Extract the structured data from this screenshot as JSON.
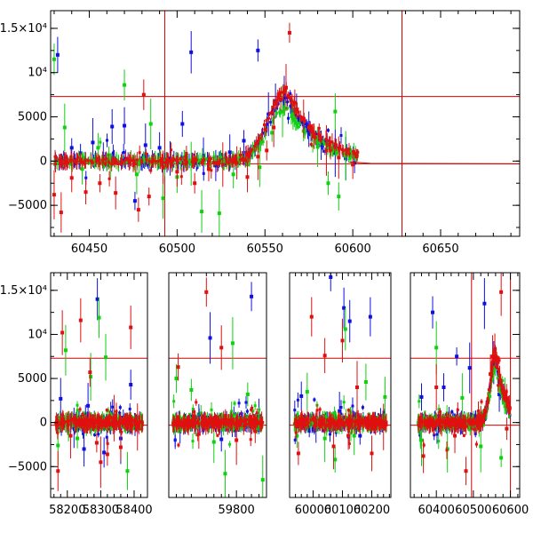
{
  "chart_data": [
    {
      "type": "scatter",
      "title": "",
      "xlabel": "",
      "ylabel": "",
      "xlim": [
        60428,
        60695
      ],
      "ylim": [
        -8500,
        17000
      ],
      "x_ticks": [
        60450,
        60500,
        60550,
        60600,
        60650
      ],
      "y_ticks": [
        -5000,
        0,
        5000,
        10000,
        15000
      ],
      "y_tick_labels": [
        "−5000",
        "0",
        "5000",
        "10⁴",
        "1.5×10⁴"
      ],
      "hlines": [
        7300,
        -300
      ],
      "vlines": [
        60493,
        60628
      ],
      "series": [
        {
          "color": "#1010e0",
          "points": [
            [
              60432,
              12000
            ],
            [
              60440,
              1500
            ],
            [
              60445,
              900
            ],
            [
              60452,
              2100
            ],
            [
              60458,
              500
            ],
            [
              60463,
              3900
            ],
            [
              60470,
              4000
            ],
            [
              60476,
              -4500
            ],
            [
              60482,
              1800
            ],
            [
              60490,
              1500
            ],
            [
              60496,
              300
            ],
            [
              60503,
              4200
            ],
            [
              60508,
              12300
            ],
            [
              60515,
              600
            ],
            [
              60522,
              -500
            ],
            [
              60530,
              1000
            ],
            [
              60538,
              2300
            ],
            [
              60546,
              12500
            ],
            [
              60552,
              5300
            ],
            [
              60556,
              6800
            ],
            [
              60561,
              7600
            ],
            [
              60568,
              5800
            ],
            [
              60575,
              3600
            ],
            [
              60582,
              1800
            ],
            [
              60590,
              900
            ],
            [
              60596,
              300
            ],
            [
              60601,
              -200
            ]
          ]
        },
        {
          "color": "#10d010",
          "points": [
            [
              60430,
              11500
            ],
            [
              60436,
              3800
            ],
            [
              60446,
              -900
            ],
            [
              60455,
              1500
            ],
            [
              60462,
              -600
            ],
            [
              60470,
              8600
            ],
            [
              60477,
              -1500
            ],
            [
              60485,
              4200
            ],
            [
              60492,
              -4200
            ],
            [
              60500,
              -1800
            ],
            [
              60508,
              -300
            ],
            [
              60514,
              -5700
            ],
            [
              60524,
              -5900
            ],
            [
              60532,
              -1500
            ],
            [
              60540,
              -400
            ],
            [
              60547,
              -700
            ],
            [
              60554,
              3200
            ],
            [
              60560,
              5600
            ],
            [
              60566,
              5300
            ],
            [
              60572,
              3400
            ],
            [
              60580,
              1600
            ],
            [
              60586,
              -2500
            ],
            [
              60590,
              5600
            ],
            [
              60592,
              -4000
            ],
            [
              60596,
              600
            ]
          ]
        },
        {
          "color": "#e01010",
          "points": [
            [
              60430,
              -3800
            ],
            [
              60434,
              -5800
            ],
            [
              60440,
              -1900
            ],
            [
              60448,
              -3500
            ],
            [
              60456,
              -2500
            ],
            [
              60465,
              -3600
            ],
            [
              60478,
              -5500
            ],
            [
              60481,
              7500
            ],
            [
              60484,
              -4000
            ],
            [
              60492,
              -700
            ],
            [
              60500,
              -1200
            ],
            [
              60510,
              -2500
            ],
            [
              60518,
              -900
            ],
            [
              60526,
              -400
            ],
            [
              60534,
              -200
            ],
            [
              60540,
              -1800
            ],
            [
              60546,
              500
            ],
            [
              60551,
              1200
            ],
            [
              60555,
              3800
            ],
            [
              60559,
              7000
            ],
            [
              60562,
              8300
            ],
            [
              60564,
              14500
            ],
            [
              60567,
              6600
            ],
            [
              60572,
              4800
            ],
            [
              60578,
              2800
            ],
            [
              60585,
              1200
            ],
            [
              60592,
              400
            ],
            [
              60600,
              -400
            ]
          ]
        }
      ]
    },
    {
      "type": "scatter",
      "title": "",
      "xlabel": "",
      "ylabel": "",
      "ylim": [
        -8500,
        17000
      ],
      "segments": [
        {
          "xlim": [
            58150,
            58440
          ],
          "x_ticks": [
            58200,
            58300,
            58400
          ]
        },
        {
          "xlim": [
            59620,
            59880
          ],
          "x_ticks": [
            59800
          ]
        },
        {
          "xlim": [
            59920,
            60265
          ],
          "x_ticks": [
            60000,
            60100,
            60200
          ]
        },
        {
          "xlim": [
            60330,
            60625
          ],
          "x_ticks": [
            60400,
            60500,
            60600
          ]
        }
      ],
      "y_ticks": [
        -5000,
        0,
        5000,
        10000,
        15000
      ],
      "y_tick_labels": [
        "−5000",
        "0",
        "5000",
        "10⁴",
        "1.5×10⁴"
      ],
      "hlines": [
        7300,
        -300
      ],
      "vlines": [
        60495,
        60600
      ],
      "series": [
        {
          "color": "#1010e0",
          "points": [
            [
              58180,
              2700
            ],
            [
              58220,
              -600
            ],
            [
              58250,
              -3000
            ],
            [
              58262,
              1900
            ],
            [
              58290,
              14000
            ],
            [
              58310,
              -3400
            ],
            [
              58330,
              500
            ],
            [
              58360,
              -1800
            ],
            [
              58390,
              4300
            ],
            [
              59650,
              -600
            ],
            [
              59700,
              900
            ],
            [
              59730,
              9600
            ],
            [
              59760,
              -1900
            ],
            [
              59800,
              -600
            ],
            [
              59840,
              14300
            ],
            [
              59860,
              700
            ],
            [
              59960,
              3000
            ],
            [
              60010,
              -700
            ],
            [
              60060,
              16500
            ],
            [
              60090,
              1300
            ],
            [
              60105,
              13000
            ],
            [
              60125,
              11500
            ],
            [
              60160,
              -1500
            ],
            [
              60195,
              12000
            ],
            [
              60230,
              400
            ],
            [
              60360,
              2900
            ],
            [
              60390,
              12500
            ],
            [
              60420,
              4000
            ],
            [
              60455,
              7500
            ],
            [
              60490,
              6200
            ],
            [
              60530,
              13500
            ],
            [
              60555,
              6800
            ],
            [
              60570,
              3200
            ]
          ]
        },
        {
          "color": "#10d010",
          "points": [
            [
              58172,
              -2600
            ],
            [
              58195,
              8200
            ],
            [
              58230,
              -1800
            ],
            [
              58270,
              5200
            ],
            [
              58295,
              11900
            ],
            [
              58315,
              7400
            ],
            [
              58380,
              -5500
            ],
            [
              59640,
              5000
            ],
            [
              59680,
              3700
            ],
            [
              59740,
              -2200
            ],
            [
              59770,
              -5800
            ],
            [
              59790,
              9000
            ],
            [
              59830,
              3200
            ],
            [
              59870,
              -6500
            ],
            [
              59945,
              -1500
            ],
            [
              59980,
              3500
            ],
            [
              60040,
              -1800
            ],
            [
              60075,
              -4200
            ],
            [
              60110,
              10600
            ],
            [
              60140,
              -1500
            ],
            [
              60180,
              4600
            ],
            [
              60245,
              2900
            ],
            [
              60360,
              -2000
            ],
            [
              60400,
              8500
            ],
            [
              60430,
              -3000
            ],
            [
              60470,
              2800
            ],
            [
              60520,
              -2700
            ],
            [
              60575,
              -4000
            ],
            [
              60585,
              3300
            ]
          ]
        },
        {
          "color": "#e01010",
          "points": [
            [
              58172,
              -5500
            ],
            [
              58185,
              10200
            ],
            [
              58210,
              -1500
            ],
            [
              58240,
              11600
            ],
            [
              58268,
              5700
            ],
            [
              58288,
              -2300
            ],
            [
              58300,
              -4500
            ],
            [
              58320,
              -3600
            ],
            [
              58340,
              500
            ],
            [
              58360,
              -2800
            ],
            [
              58390,
              10800
            ],
            [
              58410,
              -500
            ],
            [
              59645,
              6300
            ],
            [
              59700,
              -1300
            ],
            [
              59720,
              14800
            ],
            [
              59760,
              8500
            ],
            [
              59800,
              -2000
            ],
            [
              59850,
              -1000
            ],
            [
              59950,
              -3500
            ],
            [
              59995,
              12000
            ],
            [
              60040,
              7600
            ],
            [
              60070,
              -2700
            ],
            [
              60100,
              9300
            ],
            [
              60120,
              -1500
            ],
            [
              60150,
              4000
            ],
            [
              60200,
              -3500
            ],
            [
              60240,
              -500
            ],
            [
              60365,
              -3800
            ],
            [
              60400,
              4000
            ],
            [
              60450,
              -1500
            ],
            [
              60480,
              -5500
            ],
            [
              60520,
              400
            ],
            [
              60546,
              5500
            ],
            [
              60552,
              7500
            ],
            [
              60558,
              8200
            ],
            [
              60575,
              14800
            ],
            [
              60590,
              -700
            ]
          ]
        }
      ]
    }
  ]
}
